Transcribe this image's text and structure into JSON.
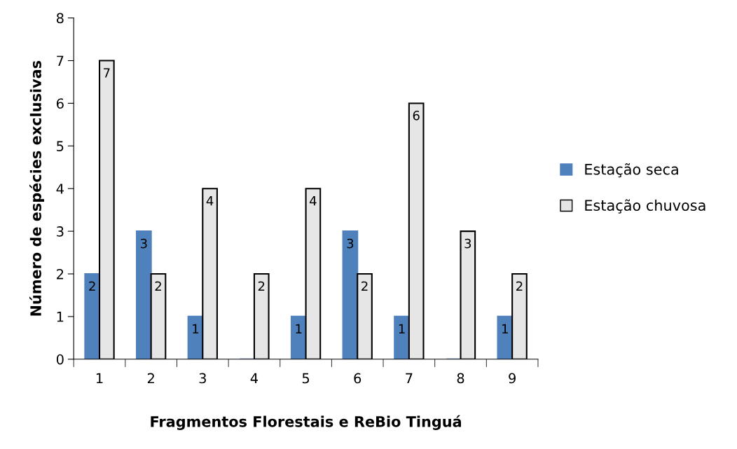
{
  "chart_data": {
    "type": "bar",
    "xlabel": "Fragmentos Florestais e ReBio Tinguá",
    "ylabel": "Número de espécies exclusivas",
    "categories": [
      "1",
      "2",
      "3",
      "4",
      "5",
      "6",
      "7",
      "8",
      "9"
    ],
    "series": [
      {
        "name": "Estação seca",
        "color": "#4f81bd",
        "values": [
          2,
          3,
          1,
          0,
          1,
          3,
          1,
          0,
          1
        ],
        "value_labels": [
          "2",
          "3",
          "1",
          null,
          "1",
          "3",
          "1",
          null,
          "1"
        ]
      },
      {
        "name": "Estação chuvosa",
        "color": "#e6e6e6",
        "values": [
          7,
          2,
          4,
          2,
          4,
          2,
          6,
          3,
          2
        ],
        "value_labels": [
          "7",
          "2",
          "4",
          "2",
          "4",
          "2",
          "6",
          "3",
          "2"
        ]
      }
    ],
    "ylim": [
      0,
      8
    ],
    "yticks": [
      0,
      1,
      2,
      3,
      4,
      5,
      6,
      7,
      8
    ],
    "grid": false,
    "legend": "right"
  }
}
